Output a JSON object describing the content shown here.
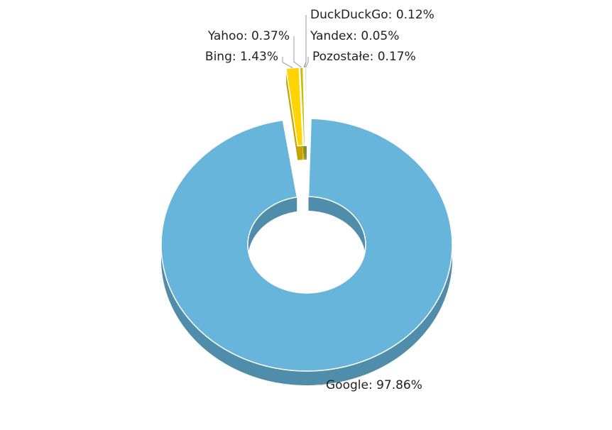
{
  "chart_data": {
    "type": "donut3d",
    "values": [
      97.86,
      1.43,
      0.37,
      0.12,
      0.05,
      0.17
    ],
    "value_labels": [
      "Google: 97.86%",
      "Bing: 1.43%",
      "Yahoo: 0.37%",
      "DuckDuckGo: 0.12%",
      "Yandex: 0.05%",
      "Pozostałe: 0.17%"
    ],
    "colors": [
      "#67b5db",
      "#ffd400",
      "#d2b800",
      "#8fbf5a",
      "#6fa844",
      "#a3c97a"
    ]
  }
}
